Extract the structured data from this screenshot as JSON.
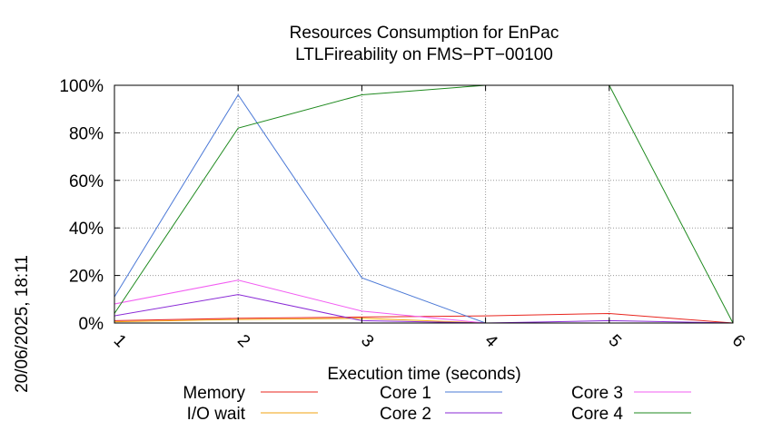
{
  "chart_data": {
    "type": "line",
    "title": "Resources Consumption for EnPac",
    "subtitle": "LTLFireability on FMS−PT−00100",
    "xlabel": "Execution time (seconds)",
    "ylabel": "",
    "side_label": "20/06/2025, 18:11",
    "xlim": [
      1,
      6
    ],
    "ylim": [
      0,
      100
    ],
    "x_ticks": [
      "1",
      "2",
      "3",
      "4",
      "5",
      "6"
    ],
    "y_ticks": [
      "0%",
      "20%",
      "40%",
      "60%",
      "80%",
      "100%"
    ],
    "grid": true,
    "legend_position": "bottom",
    "x": [
      1,
      2,
      3,
      4,
      5,
      6
    ],
    "series": [
      {
        "name": "Memory",
        "color": "#e8251e",
        "values": [
          1,
          2,
          2.5,
          3,
          4,
          0
        ]
      },
      {
        "name": "I/O wait",
        "color": "#f2a30f",
        "values": [
          0.5,
          1.5,
          2,
          0,
          0,
          0
        ]
      },
      {
        "name": "Core 1",
        "color": "#4a78d6",
        "values": [
          11,
          96,
          19,
          0,
          0,
          0
        ]
      },
      {
        "name": "Core 2",
        "color": "#8a2ad6",
        "values": [
          3,
          12,
          1,
          0,
          1,
          0
        ]
      },
      {
        "name": "Core 3",
        "color": "#f25cf2",
        "values": [
          8,
          18,
          5,
          0,
          0,
          0
        ]
      },
      {
        "name": "Core 4",
        "color": "#1f8a1f",
        "values": [
          4,
          82,
          96,
          100,
          100,
          0
        ]
      }
    ]
  }
}
